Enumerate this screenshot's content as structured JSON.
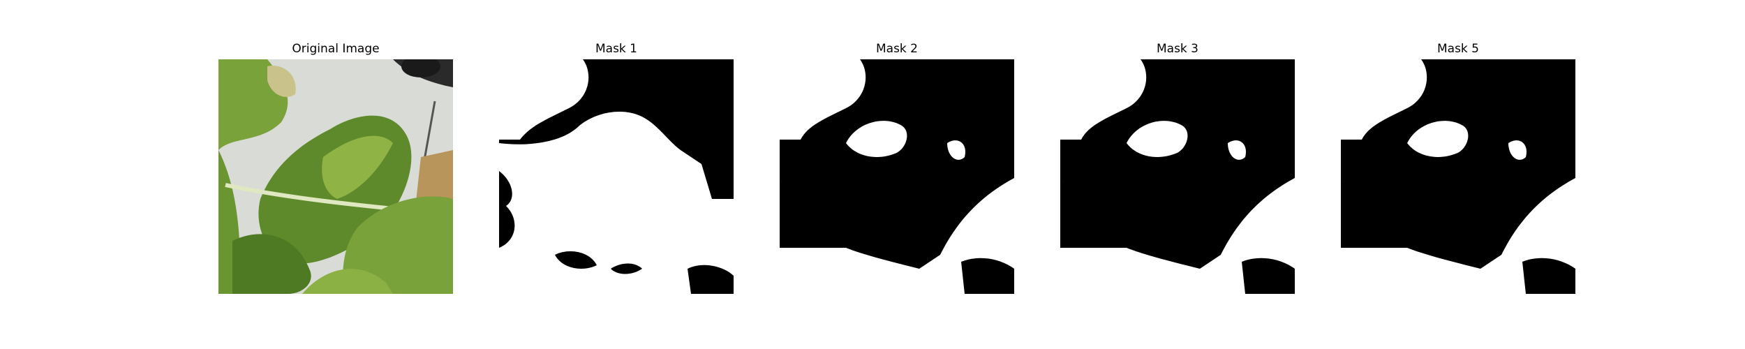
{
  "figure": {
    "panels": [
      {
        "title": "Original Image",
        "kind": "photo"
      },
      {
        "title": "Mask 1",
        "kind": "mask"
      },
      {
        "title": "Mask 2",
        "kind": "mask"
      },
      {
        "title": "Mask 3",
        "kind": "mask"
      },
      {
        "title": "Mask 5",
        "kind": "mask"
      }
    ]
  },
  "colors": {
    "mask_foreground": "#ffffff",
    "mask_background": "#000000",
    "leaf_green": "#5f8a2c",
    "leaf_light": "#9cbd4e",
    "wall": "#d9dcd6"
  }
}
